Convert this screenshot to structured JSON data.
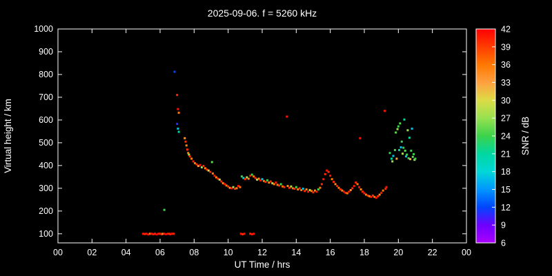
{
  "colors": {
    "background": "#000000",
    "foreground": "#ffffff"
  },
  "chart_data": {
    "type": "scatter",
    "title": "2025-09-06. f = 5260 kHz",
    "xlabel": "UT Time / hrs",
    "ylabel": "Virtual height / km",
    "colorbar_label": "SNR / dB",
    "xlim": [
      0,
      24
    ],
    "ylim": [
      60,
      1000
    ],
    "grid": false,
    "x_tick_values": [
      0,
      2,
      4,
      6,
      8,
      10,
      12,
      14,
      16,
      18,
      20,
      22,
      24
    ],
    "x_tick_labels": [
      "00",
      "02",
      "04",
      "06",
      "08",
      "10",
      "12",
      "14",
      "16",
      "18",
      "20",
      "22",
      "00"
    ],
    "y_tick_values": [
      100,
      200,
      300,
      400,
      500,
      600,
      700,
      800,
      900,
      1000
    ],
    "colorbar": {
      "min": 6,
      "max": 42,
      "ticks": [
        42,
        39,
        36,
        33,
        30,
        27,
        24,
        21,
        18,
        15,
        12,
        9,
        6
      ],
      "stops": [
        [
          42,
          [
            255,
            0,
            0
          ]
        ],
        [
          39,
          [
            255,
            60,
            0
          ]
        ],
        [
          36,
          [
            255,
            120,
            0
          ]
        ],
        [
          33,
          [
            255,
            160,
            64
          ]
        ],
        [
          30,
          [
            220,
            220,
            70
          ]
        ],
        [
          27,
          [
            150,
            225,
            80
          ]
        ],
        [
          24,
          [
            60,
            210,
            75
          ]
        ],
        [
          21,
          [
            0,
            215,
            160
          ]
        ],
        [
          18,
          [
            0,
            215,
            215
          ]
        ],
        [
          15,
          [
            0,
            150,
            255
          ]
        ],
        [
          12,
          [
            0,
            70,
            255
          ]
        ],
        [
          9,
          [
            110,
            0,
            255
          ]
        ],
        [
          6,
          [
            170,
            0,
            255
          ]
        ]
      ]
    },
    "points": [
      [
        5.0,
        100,
        41
      ],
      [
        5.1,
        99,
        40
      ],
      [
        5.2,
        100,
        41
      ],
      [
        5.3,
        97,
        42
      ],
      [
        5.4,
        100,
        36
      ],
      [
        5.5,
        100,
        41
      ],
      [
        5.6,
        98,
        41
      ],
      [
        5.7,
        100,
        40
      ],
      [
        5.8,
        97,
        42
      ],
      [
        5.9,
        100,
        41
      ],
      [
        6.0,
        100,
        40
      ],
      [
        6.1,
        98,
        41
      ],
      [
        6.15,
        100,
        35
      ],
      [
        6.25,
        100,
        41
      ],
      [
        6.35,
        98,
        42
      ],
      [
        6.45,
        100,
        41
      ],
      [
        6.55,
        100,
        40
      ],
      [
        6.6,
        98,
        41
      ],
      [
        6.7,
        100,
        41
      ],
      [
        6.8,
        100,
        40
      ],
      [
        10.75,
        100,
        41
      ],
      [
        10.85,
        98,
        40
      ],
      [
        10.95,
        100,
        41
      ],
      [
        11.3,
        100,
        40
      ],
      [
        11.4,
        98,
        41
      ],
      [
        11.5,
        100,
        41
      ],
      [
        6.25,
        205,
        24
      ],
      [
        6.85,
        812,
        12
      ],
      [
        7.0,
        710,
        40
      ],
      [
        7.05,
        648,
        41
      ],
      [
        7.1,
        632,
        36
      ],
      [
        7.0,
        583,
        11
      ],
      [
        7.05,
        562,
        17
      ],
      [
        7.1,
        548,
        21
      ],
      [
        7.45,
        520,
        34
      ],
      [
        7.5,
        505,
        40
      ],
      [
        7.55,
        488,
        35
      ],
      [
        7.6,
        470,
        40
      ],
      [
        7.65,
        455,
        36
      ],
      [
        7.7,
        448,
        28
      ],
      [
        7.75,
        440,
        40
      ],
      [
        7.85,
        430,
        35
      ],
      [
        7.95,
        418,
        41
      ],
      [
        8.05,
        410,
        36
      ],
      [
        8.15,
        405,
        40
      ],
      [
        8.25,
        398,
        34
      ],
      [
        8.35,
        402,
        41
      ],
      [
        8.45,
        392,
        27
      ],
      [
        8.55,
        398,
        40
      ],
      [
        8.65,
        388,
        35
      ],
      [
        8.75,
        382,
        40
      ],
      [
        8.85,
        378,
        30
      ],
      [
        8.95,
        372,
        40
      ],
      [
        9.05,
        415,
        25
      ],
      [
        9.1,
        365,
        36
      ],
      [
        9.2,
        355,
        41
      ],
      [
        9.3,
        348,
        35
      ],
      [
        9.4,
        342,
        40
      ],
      [
        9.5,
        338,
        29
      ],
      [
        9.6,
        330,
        40
      ],
      [
        9.7,
        322,
        35
      ],
      [
        9.8,
        318,
        41
      ],
      [
        9.9,
        312,
        36
      ],
      [
        10.0,
        308,
        40
      ],
      [
        10.1,
        302,
        34
      ],
      [
        10.2,
        300,
        41
      ],
      [
        10.3,
        305,
        27
      ],
      [
        10.4,
        298,
        40
      ],
      [
        10.5,
        300,
        35
      ],
      [
        10.6,
        310,
        41
      ],
      [
        10.7,
        305,
        36
      ],
      [
        10.8,
        352,
        24
      ],
      [
        10.9,
        345,
        18
      ],
      [
        11.0,
        340,
        40
      ],
      [
        11.1,
        348,
        28
      ],
      [
        11.2,
        342,
        35
      ],
      [
        11.3,
        355,
        41
      ],
      [
        11.4,
        360,
        24
      ],
      [
        11.5,
        352,
        36
      ],
      [
        11.6,
        345,
        40
      ],
      [
        11.7,
        338,
        29
      ],
      [
        11.8,
        342,
        35
      ],
      [
        11.9,
        335,
        41
      ],
      [
        12.0,
        340,
        17
      ],
      [
        12.1,
        332,
        36
      ],
      [
        12.2,
        328,
        40
      ],
      [
        12.3,
        335,
        24
      ],
      [
        12.4,
        325,
        35
      ],
      [
        12.5,
        330,
        40
      ],
      [
        12.6,
        322,
        28
      ],
      [
        12.7,
        318,
        36
      ],
      [
        12.8,
        325,
        41
      ],
      [
        12.9,
        315,
        35
      ],
      [
        13.0,
        312,
        40
      ],
      [
        13.1,
        318,
        24
      ],
      [
        13.2,
        308,
        36
      ],
      [
        13.3,
        305,
        40
      ],
      [
        13.45,
        615,
        41
      ],
      [
        13.5,
        310,
        35
      ],
      [
        13.6,
        302,
        40
      ],
      [
        13.7,
        308,
        28
      ],
      [
        13.8,
        300,
        36
      ],
      [
        13.9,
        298,
        40
      ],
      [
        14.0,
        305,
        24
      ],
      [
        14.1,
        295,
        35
      ],
      [
        14.2,
        300,
        40
      ],
      [
        14.3,
        292,
        36
      ],
      [
        14.4,
        298,
        17
      ],
      [
        14.5,
        288,
        40
      ],
      [
        14.6,
        295,
        35
      ],
      [
        14.7,
        285,
        41
      ],
      [
        14.8,
        292,
        28
      ],
      [
        14.9,
        288,
        36
      ],
      [
        15.0,
        282,
        40
      ],
      [
        15.1,
        290,
        35
      ],
      [
        15.2,
        285,
        41
      ],
      [
        15.3,
        295,
        24
      ],
      [
        15.4,
        302,
        36
      ],
      [
        15.5,
        318,
        40
      ],
      [
        15.6,
        340,
        41
      ],
      [
        15.7,
        362,
        40
      ],
      [
        15.8,
        378,
        41
      ],
      [
        15.9,
        372,
        40
      ],
      [
        16.0,
        355,
        41
      ],
      [
        16.1,
        340,
        36
      ],
      [
        16.2,
        328,
        40
      ],
      [
        16.3,
        318,
        35
      ],
      [
        16.4,
        310,
        41
      ],
      [
        16.5,
        302,
        36
      ],
      [
        16.6,
        295,
        40
      ],
      [
        16.7,
        290,
        35
      ],
      [
        16.8,
        285,
        41
      ],
      [
        16.9,
        280,
        40
      ],
      [
        17.0,
        278,
        36
      ],
      [
        17.1,
        285,
        41
      ],
      [
        17.2,
        292,
        35
      ],
      [
        17.3,
        300,
        40
      ],
      [
        17.4,
        310,
        41
      ],
      [
        17.5,
        325,
        40
      ],
      [
        17.6,
        318,
        36
      ],
      [
        17.7,
        305,
        41
      ],
      [
        17.75,
        520,
        41
      ],
      [
        17.8,
        295,
        35
      ],
      [
        17.9,
        285,
        40
      ],
      [
        18.0,
        278,
        41
      ],
      [
        18.1,
        272,
        36
      ],
      [
        18.2,
        268,
        40
      ],
      [
        18.3,
        265,
        35
      ],
      [
        18.4,
        262,
        41
      ],
      [
        18.5,
        268,
        40
      ],
      [
        18.6,
        262,
        36
      ],
      [
        18.7,
        258,
        41
      ],
      [
        18.8,
        265,
        40
      ],
      [
        18.9,
        272,
        35
      ],
      [
        19.0,
        280,
        41
      ],
      [
        19.1,
        290,
        36
      ],
      [
        19.2,
        640,
        41
      ],
      [
        19.25,
        298,
        40
      ],
      [
        19.3,
        305,
        41
      ],
      [
        19.5,
        455,
        24
      ],
      [
        19.6,
        430,
        21
      ],
      [
        19.65,
        418,
        27
      ],
      [
        19.7,
        442,
        17
      ],
      [
        19.8,
        468,
        24
      ],
      [
        19.85,
        545,
        25
      ],
      [
        19.9,
        430,
        33
      ],
      [
        19.95,
        560,
        27
      ],
      [
        20.0,
        572,
        24
      ],
      [
        20.05,
        468,
        21
      ],
      [
        20.1,
        585,
        25
      ],
      [
        20.15,
        480,
        17
      ],
      [
        20.2,
        505,
        24
      ],
      [
        20.25,
        452,
        28
      ],
      [
        20.3,
        478,
        24
      ],
      [
        20.35,
        602,
        21
      ],
      [
        20.4,
        465,
        25
      ],
      [
        20.45,
        440,
        17
      ],
      [
        20.5,
        448,
        24
      ],
      [
        20.55,
        555,
        27
      ],
      [
        20.6,
        432,
        24
      ],
      [
        20.65,
        522,
        21
      ],
      [
        20.7,
        428,
        33
      ],
      [
        20.75,
        465,
        24
      ],
      [
        20.8,
        562,
        17
      ],
      [
        20.85,
        438,
        25
      ],
      [
        20.9,
        450,
        24
      ],
      [
        20.95,
        425,
        27
      ],
      [
        21.0,
        430,
        24
      ]
    ]
  }
}
